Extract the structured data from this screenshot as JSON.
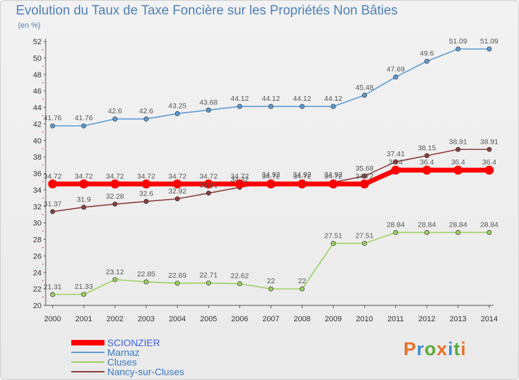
{
  "title": "Evolution du Taux de Taxe Foncière sur les Propriétés Non Bâties",
  "unit": "(en %)",
  "logo": {
    "text": "Proxiti",
    "colors": [
      "#e8702a",
      "#3f8fd1",
      "#5aab3a",
      "#e8702a",
      "#3f8fd1",
      "#5aab3a",
      "#e8702a"
    ]
  },
  "chart_data": {
    "type": "line",
    "title": "Evolution du Taux de Taxe Foncière sur les Propriétés Non Bâties",
    "ylabel": "(en %)",
    "x": [
      "2000",
      "2001",
      "2002",
      "2003",
      "2004",
      "2005",
      "2006",
      "2007",
      "2008",
      "2009",
      "2010",
      "2011",
      "2012",
      "2013",
      "2014"
    ],
    "ylim": [
      20,
      52
    ],
    "yticks": [
      20,
      22,
      24,
      26,
      28,
      30,
      32,
      34,
      36,
      38,
      40,
      42,
      44,
      46,
      48,
      50,
      52
    ],
    "grid": false,
    "legend": "bottom-left",
    "series": [
      {
        "name": "SCIONZIER",
        "color": "#ff0000",
        "values": [
          34.72,
          34.72,
          34.72,
          34.72,
          34.72,
          34.72,
          34.72,
          34.72,
          34.72,
          34.72,
          34.72,
          36.4,
          36.4,
          36.4,
          36.4
        ],
        "labels": [
          "34.72",
          "34.72",
          "34.72",
          "34.72",
          "34.72",
          "34.72",
          "34.72",
          "34.72",
          "34.72",
          "34.72",
          "34.72",
          "36.4",
          "36.4",
          "36.4",
          "36.4"
        ]
      },
      {
        "name": "Marnaz",
        "color": "#5b9bd5",
        "values": [
          41.76,
          41.76,
          42.6,
          42.6,
          43.25,
          43.68,
          44.12,
          44.12,
          44.12,
          44.12,
          45.48,
          47.69,
          49.6,
          51.09,
          51.09
        ],
        "labels": [
          "41.76",
          "41.76",
          "42.6",
          "42.6",
          "43.25",
          "43.68",
          "44.12",
          "44.12",
          "44.12",
          "44.12",
          "45.48",
          "47.69",
          "49.6",
          "51.09",
          "51.09"
        ]
      },
      {
        "name": "Cluses",
        "color": "#9bd160",
        "values": [
          21.31,
          21.33,
          23.12,
          22.85,
          22.69,
          22.71,
          22.62,
          22,
          22,
          27.51,
          27.51,
          28.84,
          28.84,
          28.84,
          28.84
        ],
        "labels": [
          "21.31",
          "21.33",
          "23.12",
          "22.85",
          "22.69",
          "22.71",
          "22.62",
          "22",
          "22",
          "27.51",
          "27.51",
          "28.84",
          "28.84",
          "28.84",
          "28.84"
        ]
      },
      {
        "name": "Nancy-sur-Cluses",
        "color": "#8b3b3b",
        "values": [
          31.37,
          31.9,
          32.28,
          32.6,
          32.92,
          33.61,
          34.32,
          34.92,
          34.92,
          34.92,
          35.68,
          37.41,
          38.15,
          38.91,
          38.91
        ],
        "labels": [
          "31.37",
          "31.9",
          "32.28",
          "32.6",
          "32.92",
          "33.61",
          "34.32",
          "34.92",
          "34.92",
          "34.92",
          "35.68",
          "37.41",
          "38.15",
          "38.91",
          "38.91"
        ]
      }
    ]
  }
}
